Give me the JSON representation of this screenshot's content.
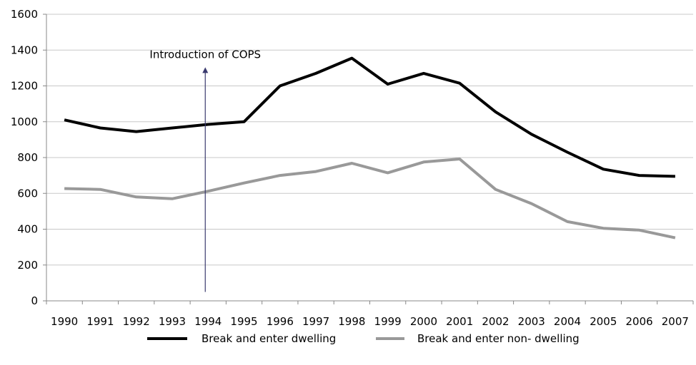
{
  "chart_data": {
    "type": "line",
    "title": "",
    "xlabel": "",
    "ylabel": "",
    "x": [
      "1990",
      "1991",
      "1992",
      "1993",
      "1994",
      "1995",
      "1996",
      "1997",
      "1998",
      "1999",
      "2000",
      "2001",
      "2002",
      "2003",
      "2004",
      "2005",
      "2006",
      "2007"
    ],
    "ylim": [
      0,
      1600
    ],
    "yticks": [
      0,
      200,
      400,
      600,
      800,
      1000,
      1200,
      1400,
      1600
    ],
    "grid": true,
    "legend_position": "bottom",
    "series": [
      {
        "name": "Break and enter dwelling",
        "color": "#000000",
        "values": [
          1010,
          965,
          945,
          965,
          985,
          1000,
          1200,
          1270,
          1355,
          1210,
          1270,
          1215,
          1055,
          930,
          830,
          735,
          700,
          695
        ]
      },
      {
        "name": "Break and enter non- dwelling",
        "color": "#999999",
        "values": [
          627,
          622,
          580,
          570,
          612,
          658,
          700,
          722,
          768,
          715,
          775,
          792,
          622,
          543,
          442,
          405,
          395,
          352
        ]
      }
    ],
    "annotations": [
      {
        "text": "Introduction of COPS",
        "x": "1994",
        "arrow_from_y": 50,
        "arrow_to_y": 1300,
        "color": "#3a3a6e"
      }
    ]
  }
}
